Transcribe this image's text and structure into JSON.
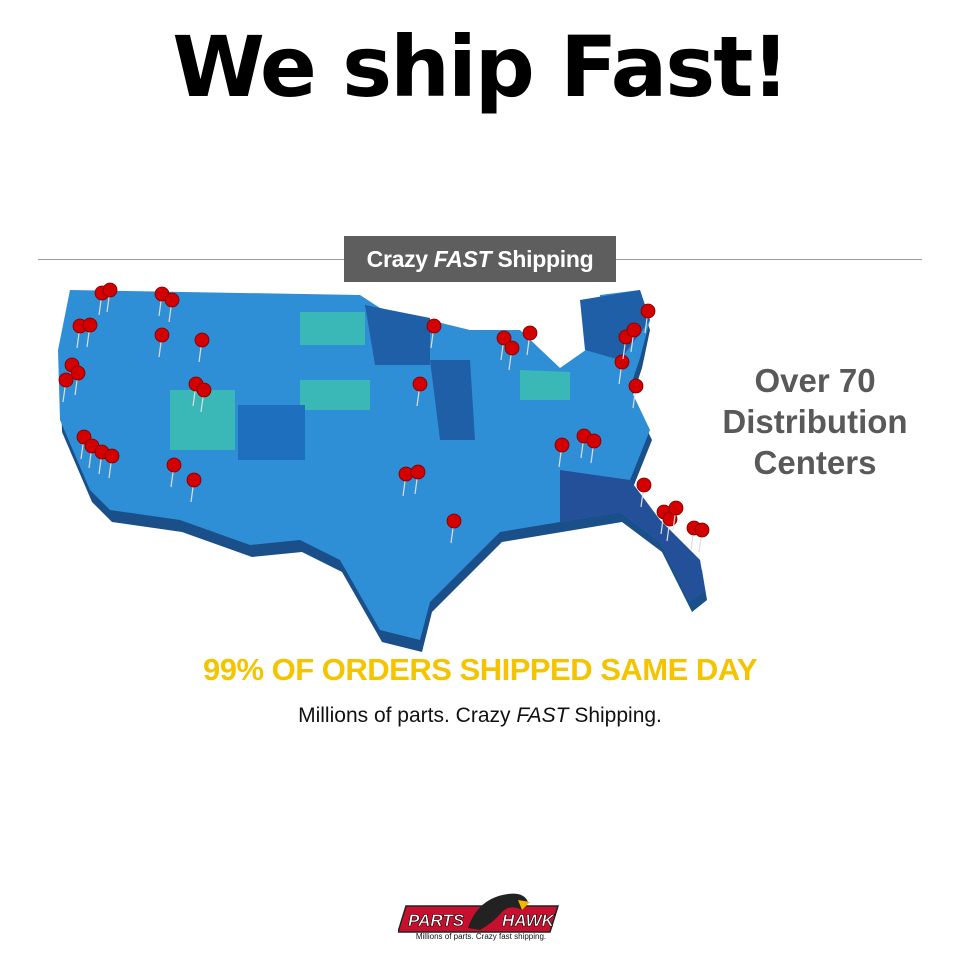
{
  "headline": "We ship Fast!",
  "banner": {
    "pre": "Crazy",
    "emph": "FAST",
    "post": "Shipping"
  },
  "distribution": {
    "line1": "Over 70",
    "line2": "Distribution",
    "line3": "Centers"
  },
  "same_day": "99% OF ORDERS SHIPPED SAME DAY",
  "tagline": {
    "pre": "Millions of parts. Crazy",
    "emph": "FAST",
    "post": "Shipping."
  },
  "logo": {
    "left": "PARTS",
    "right": "HAWK",
    "tagline": "Millions of parts. Crazy fast shipping."
  },
  "colors": {
    "map_base": "#2f8fd6",
    "map_dark": "#1f5fa8",
    "map_teal": "#3ab8b8",
    "pin": "#d40000",
    "yellow": "#f5c400",
    "banner": "#5e5e5e"
  }
}
